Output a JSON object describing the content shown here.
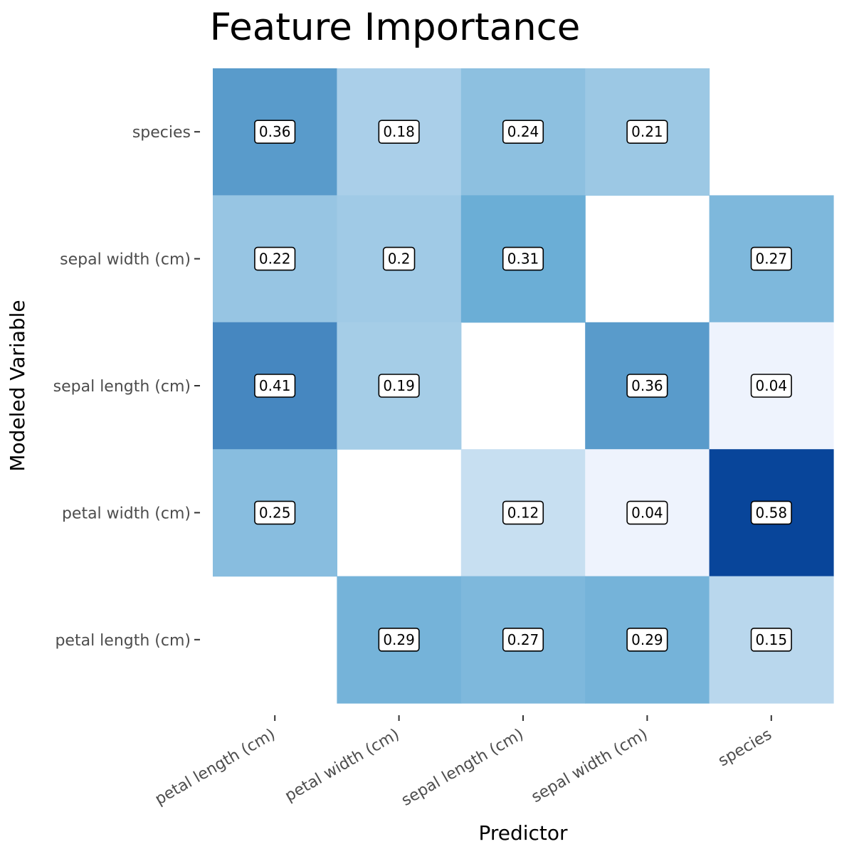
{
  "chart_data": {
    "type": "heatmap",
    "title": "Feature Importance",
    "xlabel": "Predictor",
    "ylabel": "Modeled Variable",
    "x_categories": [
      "petal length (cm)",
      "petal width (cm)",
      "sepal length (cm)",
      "sepal width (cm)",
      "species"
    ],
    "y_categories": [
      "species",
      "sepal width (cm)",
      "sepal length (cm)",
      "petal width (cm)",
      "petal length (cm)"
    ],
    "values": [
      [
        0.36,
        0.18,
        0.24,
        0.21,
        null
      ],
      [
        0.22,
        0.2,
        0.31,
        null,
        0.27
      ],
      [
        0.41,
        0.19,
        null,
        0.36,
        0.04
      ],
      [
        0.25,
        null,
        0.12,
        0.04,
        0.58
      ],
      [
        null,
        0.29,
        0.27,
        0.29,
        0.15
      ]
    ],
    "color_scale": {
      "low": "#eef3fd",
      "mid": "#6baed6",
      "high": "#08459a",
      "missing": "#ffffff"
    },
    "legend": "none",
    "grid": false
  }
}
